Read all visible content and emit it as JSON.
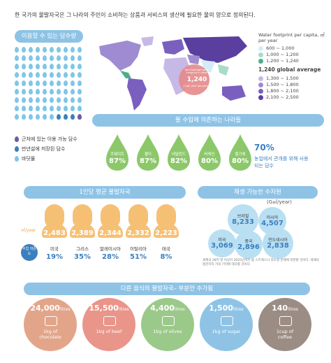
{
  "intro": "한 국가의 물발자국은 그 나라의 주민이 소비하는 상품과 서비스의 생산에 필요한 물의 양으로 정의된다.",
  "available_banner": "이용할 수 있는 담수량",
  "map_legend": {
    "title": "Water footprint per capita, ㎥ per year",
    "items": [
      {
        "label": "600 ~ 1,000",
        "color": "#d4ecf7"
      },
      {
        "label": "1,000 ~ 1,200",
        "color": "#a8dcc8"
      },
      {
        "label": "1,200 ~ 1,240",
        "color": "#4cae8c"
      },
      {
        "label": "1,240 global average",
        "color": "#444444"
      },
      {
        "label": "1,300 ~ 1,500",
        "color": "#c7b9e5"
      },
      {
        "label": "1,500 ~ 1,800",
        "color": "#9f8bd1"
      },
      {
        "label": "1,800 ~ 2,100",
        "color": "#7a5fbf"
      },
      {
        "label": "2,100 ~ 2,500",
        "color": "#5a3f9f"
      }
    ],
    "callout_label": "total average water footprint in cities",
    "callout_value": "1,240",
    "callout_unit": "㎥ per year per person"
  },
  "water_legend": [
    {
      "label": "근처에 있는 이용 가능 담수",
      "color": "#6e5aa7"
    },
    {
      "label": "만년설에 저장된 담수",
      "color": "#3a7fbf"
    },
    {
      "label": "바닷물",
      "color": "#7fc6e8"
    }
  ],
  "import_banner": "물 수입에 의존하는 나라들",
  "import_countries": [
    {
      "name": "쿠웨이트",
      "pct": "87%",
      "color": "#8cc86a"
    },
    {
      "name": "몰타",
      "pct": "87%",
      "color": "#8cc86a"
    },
    {
      "name": "네덜란드",
      "pct": "82%",
      "color": "#8cc86a"
    },
    {
      "name": "바레인",
      "pct": "80%",
      "color": "#8cc86a"
    },
    {
      "name": "벨기에",
      "pct": "80%",
      "color": "#8cc86a"
    }
  ],
  "import_note_pct": "70%",
  "import_note_text": "농업에서 관개를 위해 사용되는 담수",
  "per_capita_banner": "1인당 평균 물발자국",
  "per_capita_unit": "㎥/year",
  "per_capita_label_left": "수입 의존도",
  "per_capita": [
    {
      "value": "2,483",
      "country": "미국",
      "pct": "19%"
    },
    {
      "value": "2,389",
      "country": "그리스",
      "pct": "35%"
    },
    {
      "value": "2,344",
      "country": "말레이시아",
      "pct": "28%"
    },
    {
      "value": "2,332",
      "country": "이탈리아",
      "pct": "51%"
    },
    {
      "value": "2,223",
      "country": "태국",
      "pct": "8%"
    }
  ],
  "renewable_banner": "재생 가능한 수자원",
  "renewable_unit": "(G㎥/year)",
  "renewable": [
    {
      "country": "브라질",
      "value": "8,233"
    },
    {
      "country": "러시아",
      "value": "4,507"
    },
    {
      "country": "미국",
      "value": "3,069"
    },
    {
      "country": "중국",
      "value": "2,896"
    },
    {
      "country": "인도네시아",
      "value": "2,838"
    }
  ],
  "renewable_note": "세계국 28억 명 이상이 2025년까지 물 스트레스나 희소성 문제에 직면할 것이다. 세계의 충분하지 가의 기억에 대다를 것이다.",
  "food_banner": "다른 음식의 물발자국– 부분만 추가됨",
  "foods": [
    {
      "amount": "24,000",
      "unit": "litres",
      "item": "1kg of chocolate",
      "color": "#e3a58a"
    },
    {
      "amount": "15,500",
      "unit": "litres",
      "item": "1kg of beef",
      "color": "#e9958a"
    },
    {
      "amount": "4,400",
      "unit": "litres",
      "item": "1kg of olives",
      "color": "#9bc98a"
    },
    {
      "amount": "1,500",
      "unit": "litres",
      "item": "1kg of sugar",
      "color": "#8ec3e6"
    },
    {
      "amount": "140",
      "unit": "litres",
      "item": "1cup of coffee",
      "color": "#9c8d84"
    }
  ]
}
